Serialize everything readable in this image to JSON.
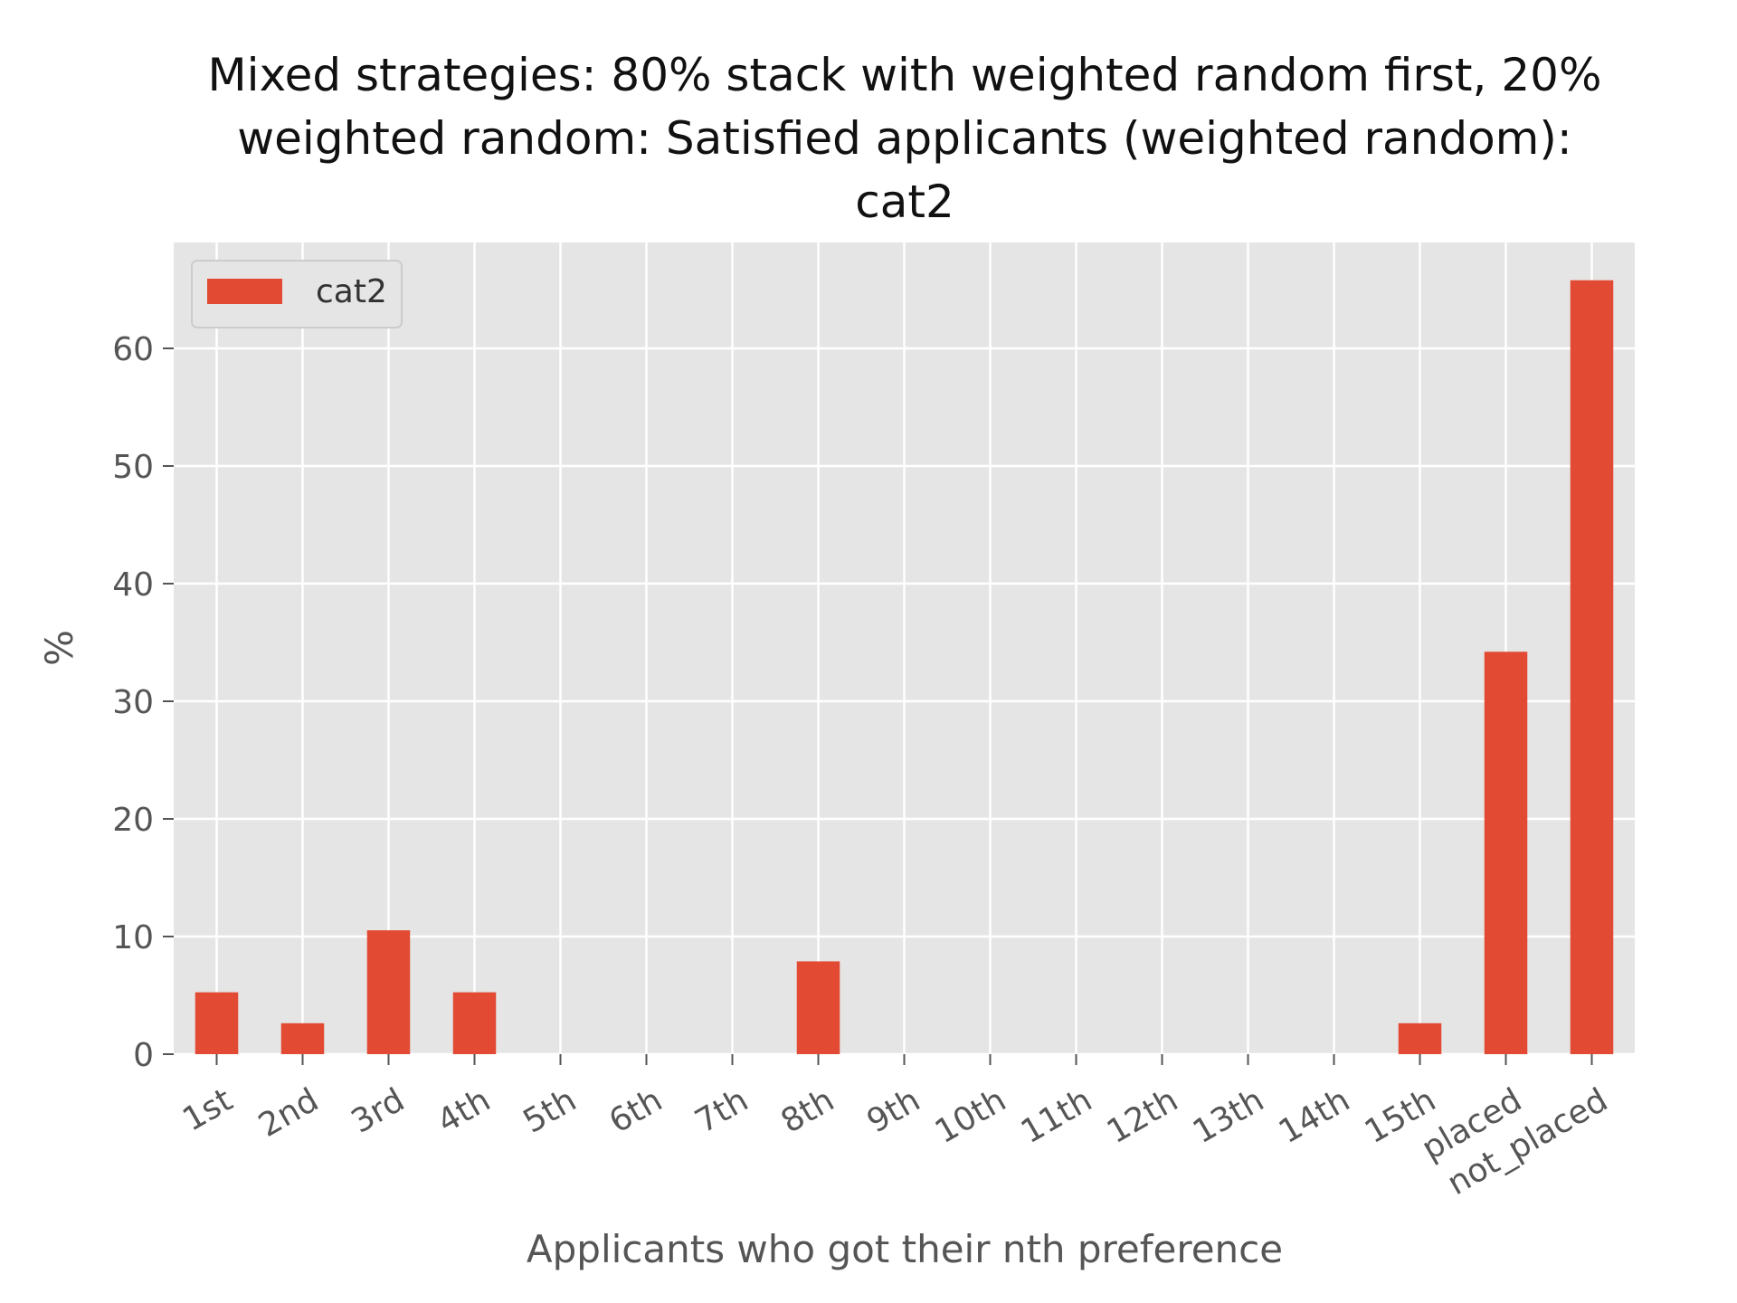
{
  "chart_data": {
    "type": "bar",
    "title_lines": [
      "Mixed strategies: 80% stack with weighted random first, 20%",
      "weighted random: Satisfied applicants (weighted random):",
      "cat2"
    ],
    "xlabel": "Applicants who got their nth preference",
    "ylabel": "%",
    "categories": [
      "1st",
      "2nd",
      "3rd",
      "4th",
      "5th",
      "6th",
      "7th",
      "8th",
      "9th",
      "10th",
      "11th",
      "12th",
      "13th",
      "14th",
      "15th",
      "placed",
      "not_placed"
    ],
    "series": [
      {
        "name": "cat2",
        "color": "#E24A33",
        "values": [
          5.26,
          2.63,
          10.53,
          5.26,
          0,
          0,
          0,
          7.89,
          0,
          0,
          0,
          0,
          0,
          0,
          2.63,
          34.21,
          65.79
        ]
      }
    ],
    "ylim": [
      0,
      69
    ],
    "yticks": [
      0,
      10,
      20,
      30,
      40,
      50,
      60
    ],
    "grid": true,
    "legend_position": "top-left",
    "style": "ggplot",
    "background_color": "#E5E5E5"
  }
}
